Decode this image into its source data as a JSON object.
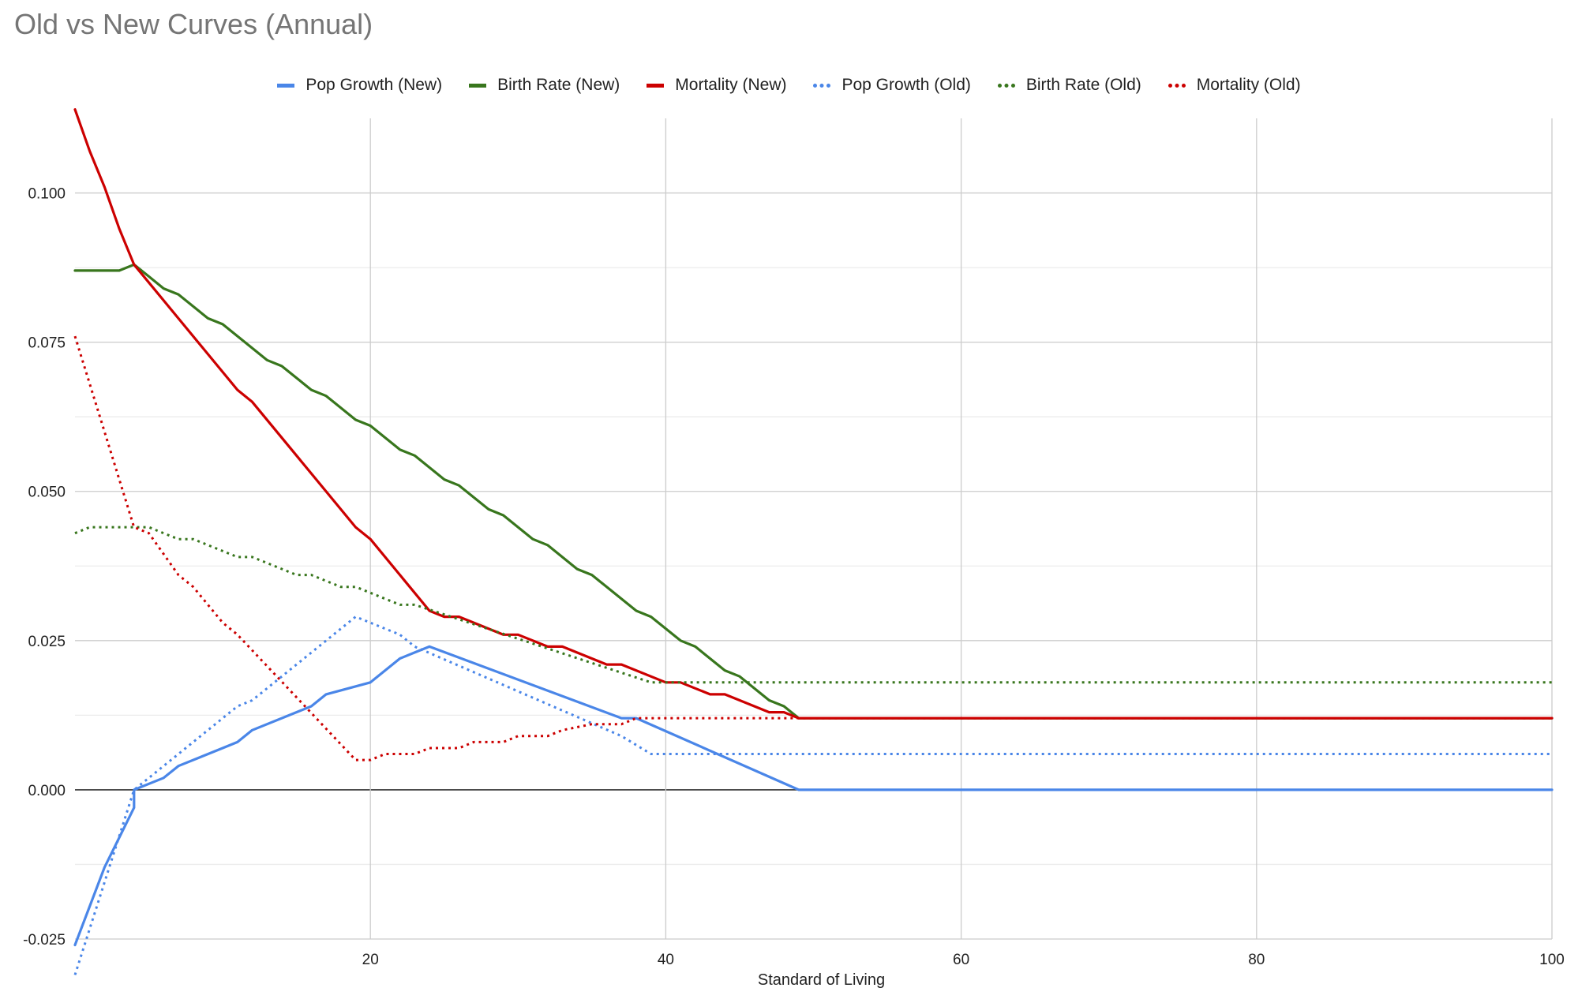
{
  "chart_data": {
    "type": "line",
    "title": "Old vs New Curves (Annual)",
    "xlabel": "Standard of Living",
    "ylabel": "",
    "xlim": [
      0,
      100
    ],
    "ylim": [
      -0.025,
      0.1125
    ],
    "x_ticks": [
      20,
      40,
      60,
      80,
      100
    ],
    "x_tick_labels": [
      "20",
      "40",
      "60",
      "80",
      "100"
    ],
    "y_ticks": [
      -0.025,
      0,
      0.025,
      0.05,
      0.075,
      0.1
    ],
    "y_tick_labels": [
      "-0.025",
      "0.000",
      "0.025",
      "0.050",
      "0.075",
      "0.100"
    ],
    "grid": true,
    "legend_position": "top",
    "series": [
      {
        "name": "Pop Growth (New)",
        "color": "#4a86e8",
        "style": "solid",
        "points": [
          [
            0,
            -0.026
          ],
          [
            2,
            -0.013
          ],
          [
            4,
            -0.003
          ],
          [
            4,
            0.0
          ],
          [
            6,
            0.002
          ],
          [
            7,
            0.004
          ],
          [
            10,
            0.007
          ],
          [
            11,
            0.008
          ],
          [
            12,
            0.01
          ],
          [
            16,
            0.014
          ],
          [
            17,
            0.016
          ],
          [
            20,
            0.018
          ],
          [
            21,
            0.02
          ],
          [
            22,
            0.022
          ],
          [
            23,
            0.023
          ],
          [
            24,
            0.024
          ],
          [
            37,
            0.012
          ],
          [
            38,
            0.012
          ],
          [
            49,
            0.0
          ],
          [
            100,
            0.0
          ]
        ]
      },
      {
        "name": "Birth Rate (New)",
        "color": "#38761d",
        "style": "solid",
        "points": [
          [
            0,
            0.087
          ],
          [
            3,
            0.087
          ],
          [
            4,
            0.088
          ],
          [
            5,
            0.086
          ],
          [
            6,
            0.084
          ],
          [
            7,
            0.083
          ],
          [
            9,
            0.079
          ],
          [
            10,
            0.078
          ],
          [
            13,
            0.072
          ],
          [
            14,
            0.071
          ],
          [
            16,
            0.067
          ],
          [
            17,
            0.066
          ],
          [
            19,
            0.062
          ],
          [
            20,
            0.061
          ],
          [
            22,
            0.057
          ],
          [
            23,
            0.056
          ],
          [
            25,
            0.052
          ],
          [
            26,
            0.051
          ],
          [
            28,
            0.047
          ],
          [
            29,
            0.046
          ],
          [
            31,
            0.042
          ],
          [
            32,
            0.041
          ],
          [
            34,
            0.037
          ],
          [
            35,
            0.036
          ],
          [
            38,
            0.03
          ],
          [
            39,
            0.029
          ],
          [
            41,
            0.025
          ],
          [
            42,
            0.024
          ],
          [
            44,
            0.02
          ],
          [
            45,
            0.019
          ],
          [
            47,
            0.015
          ],
          [
            48,
            0.014
          ],
          [
            49,
            0.012
          ],
          [
            100,
            0.012
          ]
        ]
      },
      {
        "name": "Mortality (New)",
        "color": "#cc0000",
        "style": "solid",
        "points": [
          [
            0,
            0.114
          ],
          [
            1,
            0.107
          ],
          [
            2,
            0.101
          ],
          [
            3,
            0.094
          ],
          [
            4,
            0.088
          ],
          [
            11,
            0.067
          ],
          [
            12,
            0.065
          ],
          [
            19,
            0.044
          ],
          [
            20,
            0.042
          ],
          [
            24,
            0.03
          ],
          [
            25,
            0.029
          ],
          [
            26,
            0.029
          ],
          [
            29,
            0.026
          ],
          [
            30,
            0.026
          ],
          [
            32,
            0.024
          ],
          [
            33,
            0.024
          ],
          [
            36,
            0.021
          ],
          [
            37,
            0.021
          ],
          [
            40,
            0.018
          ],
          [
            41,
            0.018
          ],
          [
            43,
            0.016
          ],
          [
            44,
            0.016
          ],
          [
            47,
            0.013
          ],
          [
            48,
            0.013
          ],
          [
            49,
            0.012
          ],
          [
            100,
            0.012
          ]
        ]
      },
      {
        "name": "Pop Growth (Old)",
        "color": "#4a86e8",
        "style": "dotted",
        "points": [
          [
            0,
            -0.031
          ],
          [
            4,
            0.0
          ],
          [
            5,
            0.002
          ],
          [
            11,
            0.014
          ],
          [
            12,
            0.015
          ],
          [
            19,
            0.029
          ],
          [
            22,
            0.026
          ],
          [
            23,
            0.024
          ],
          [
            37,
            0.009
          ],
          [
            39,
            0.006
          ],
          [
            100,
            0.006
          ]
        ]
      },
      {
        "name": "Birth Rate (Old)",
        "color": "#38761d",
        "style": "dotted",
        "points": [
          [
            0,
            0.043
          ],
          [
            1,
            0.044
          ],
          [
            5,
            0.044
          ],
          [
            6,
            0.043
          ],
          [
            7,
            0.042
          ],
          [
            8,
            0.042
          ],
          [
            11,
            0.039
          ],
          [
            12,
            0.039
          ],
          [
            15,
            0.036
          ],
          [
            16,
            0.036
          ],
          [
            18,
            0.034
          ],
          [
            19,
            0.034
          ],
          [
            22,
            0.031
          ],
          [
            23,
            0.031
          ],
          [
            39,
            0.018
          ],
          [
            100,
            0.018
          ]
        ]
      },
      {
        "name": "Mortality (Old)",
        "color": "#cc0000",
        "style": "dotted",
        "points": [
          [
            0,
            0.076
          ],
          [
            4,
            0.044
          ],
          [
            5,
            0.043
          ],
          [
            7,
            0.036
          ],
          [
            8,
            0.034
          ],
          [
            10,
            0.028
          ],
          [
            11,
            0.026
          ],
          [
            19,
            0.005
          ],
          [
            20,
            0.005
          ],
          [
            21,
            0.006
          ],
          [
            23,
            0.006
          ],
          [
            24,
            0.007
          ],
          [
            26,
            0.007
          ],
          [
            27,
            0.008
          ],
          [
            29,
            0.008
          ],
          [
            30,
            0.009
          ],
          [
            32,
            0.009
          ],
          [
            33,
            0.01
          ],
          [
            35,
            0.011
          ],
          [
            37,
            0.011
          ],
          [
            38,
            0.012
          ],
          [
            100,
            0.012
          ]
        ]
      }
    ]
  }
}
